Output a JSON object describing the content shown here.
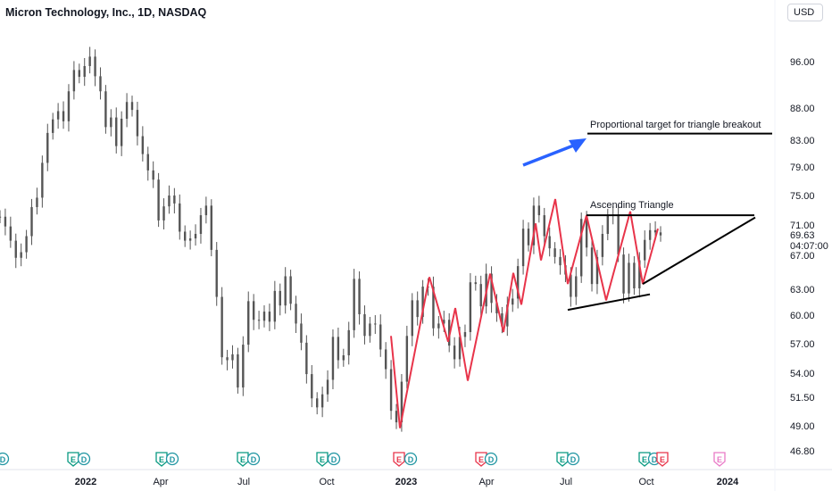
{
  "header": {
    "title": "Micron Technology, Inc., 1D, NASDAQ",
    "currency": "USD"
  },
  "chart_data": {
    "type": "candlestick",
    "price_axis": {
      "ticks": [
        "96.00",
        "88.00",
        "83.00",
        "79.00",
        "75.00",
        "71.00",
        "67.00",
        "63.00",
        "60.00",
        "57.00",
        "54.00",
        "51.50",
        "49.00",
        "46.80"
      ],
      "last_price": "69.63",
      "countdown": "04:07:00"
    },
    "time_axis": {
      "ticks": [
        "2022",
        "Apr",
        "Jul",
        "Oct",
        "2023",
        "Apr",
        "Jul",
        "Oct",
        "2024"
      ]
    },
    "annotations": {
      "target_label": "Proportional target for triangle breakout",
      "triangle_label": "Ascending Triangle"
    },
    "zigzag_prices": [
      57.8,
      48.8,
      64.4,
      57.2,
      60.8,
      53.2,
      64.8,
      58.2,
      64.9,
      61.2,
      71.2,
      66.4,
      74.5,
      63.6,
      72.3,
      61.7,
      72.8,
      63.6,
      70.5
    ],
    "triangle_top_price": 72.3,
    "triangle_support_prices": [
      60.6,
      61.7
    ],
    "wedge_prices": [
      63.6,
      72.0
    ],
    "target_price": 84.0,
    "candles_close": [
      72.1,
      70.8,
      68.9,
      66.7,
      67.4,
      69.5,
      73.4,
      74.7,
      79.6,
      84.1,
      86.2,
      87.5,
      85.9,
      90.8,
      94.5,
      93.3,
      95.2,
      96.9,
      93.4,
      90.8,
      85.0,
      86.5,
      82.1,
      86.3,
      89.0,
      87.7,
      83.6,
      80.9,
      78.5,
      77.2,
      71.6,
      73.5,
      75.0,
      73.9,
      70.1,
      68.9,
      69.2,
      69.8,
      72.3,
      73.6,
      67.7,
      62.1,
      55.6,
      55.3,
      55.9,
      52.5,
      56.9,
      61.6,
      59.5,
      59.4,
      60.4,
      59.3,
      62.8,
      61.1,
      64.5,
      61.3,
      59.1,
      57.1,
      53.9,
      51.4,
      50.6,
      51.8,
      53.3,
      57.7,
      55.3,
      55.8,
      58.4,
      64.2,
      60.1,
      57.8,
      59.1,
      59.0,
      56.4,
      54.4,
      50.3,
      49.3,
      53.1,
      57.8,
      61.7,
      59.8,
      63.3,
      63.3,
      58.6,
      59.1,
      59.5,
      56.8,
      55.4,
      57.7,
      58.2,
      63.8,
      63.6,
      61.0,
      64.8,
      61.4,
      60.2,
      58.8,
      61.2,
      61.9,
      65.7,
      70.5,
      68.3,
      73.6,
      72.3,
      69.5,
      67.9,
      66.8,
      65.8,
      64.7,
      62.1,
      64.5,
      71.8,
      68.0,
      63.6,
      66.8,
      69.8,
      72.3,
      72.4,
      67.1,
      62.5,
      66.1,
      63.1,
      66.4,
      69.0,
      70.3,
      70.0,
      69.6
    ]
  }
}
